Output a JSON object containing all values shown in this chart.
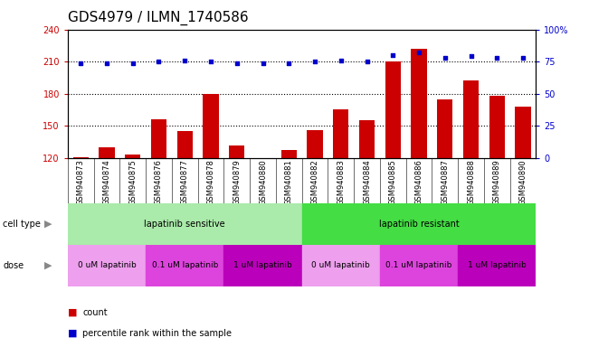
{
  "title": "GDS4979 / ILMN_1740586",
  "samples": [
    "GSM940873",
    "GSM940874",
    "GSM940875",
    "GSM940876",
    "GSM940877",
    "GSM940878",
    "GSM940879",
    "GSM940880",
    "GSM940881",
    "GSM940882",
    "GSM940883",
    "GSM940884",
    "GSM940885",
    "GSM940886",
    "GSM940887",
    "GSM940888",
    "GSM940889",
    "GSM940890"
  ],
  "counts": [
    121,
    130,
    123,
    156,
    145,
    180,
    132,
    120,
    127,
    146,
    165,
    155,
    210,
    222,
    175,
    192,
    178,
    168
  ],
  "percentile_ranks": [
    74,
    74,
    74,
    75,
    76,
    75,
    74,
    74,
    74,
    75,
    76,
    75,
    80,
    82,
    78,
    79,
    78,
    78
  ],
  "bar_color": "#cc0000",
  "dot_color": "#0000cc",
  "ylim_left": [
    120,
    240
  ],
  "ylim_right": [
    0,
    100
  ],
  "yticks_left": [
    120,
    150,
    180,
    210,
    240
  ],
  "yticks_right": [
    0,
    25,
    50,
    75,
    100
  ],
  "yticklabels_right": [
    "0",
    "25",
    "50",
    "75",
    "100%"
  ],
  "cell_type_labels": [
    "lapatinib sensitive",
    "lapatinib resistant"
  ],
  "cell_type_colors": [
    "#aaeaaa",
    "#44dd44"
  ],
  "cell_type_ranges": [
    [
      0,
      9
    ],
    [
      9,
      18
    ]
  ],
  "dose_labels": [
    "0 uM lapatinib",
    "0.1 uM lapatinib",
    "1 uM lapatinib",
    "0 uM lapatinib",
    "0.1 uM lapatinib",
    "1 uM lapatinib"
  ],
  "dose_colors": [
    "#eea0ee",
    "#dd44dd",
    "#bb00bb",
    "#eea0ee",
    "#dd44dd",
    "#bb00bb"
  ],
  "dose_ranges": [
    [
      0,
      3
    ],
    [
      3,
      6
    ],
    [
      6,
      9
    ],
    [
      9,
      12
    ],
    [
      12,
      15
    ],
    [
      15,
      18
    ]
  ],
  "legend_count_label": "count",
  "legend_pct_label": "percentile rank within the sample",
  "plot_bg_color": "#ffffff",
  "xband_bg_color": "#cccccc",
  "dotted_line_values": [
    210,
    180,
    150
  ],
  "title_fontsize": 11,
  "tick_fontsize": 7,
  "label_fontsize": 8,
  "sample_fontsize": 6
}
